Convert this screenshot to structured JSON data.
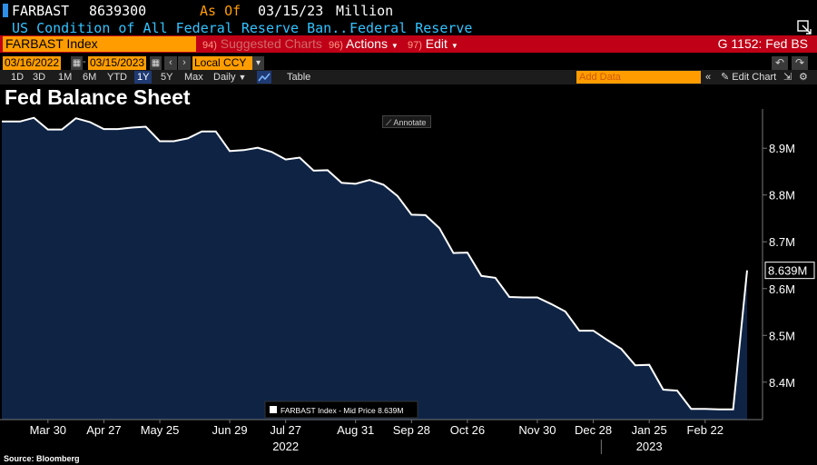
{
  "header": {
    "ticker": "FARBAST",
    "last_value": "8639300",
    "as_of_label": "As Of",
    "as_of_date": "03/15/23",
    "units": "Million",
    "description": "US Condition of All Federal Reserve Ban...",
    "source_name": "Federal Reserve"
  },
  "command_bar": {
    "security": "FARBAST Index",
    "suggested_num": "94)",
    "suggested_label": "Suggested Charts",
    "actions_num": "96)",
    "actions_label": "Actions",
    "edit_num": "97)",
    "edit_label": "Edit",
    "function_label": "G 1152: Fed BS"
  },
  "date_row": {
    "start_date": "03/16/2022",
    "end_date": "03/15/2023",
    "currency": "Local CCY"
  },
  "range_row": {
    "ranges": [
      "1D",
      "3D",
      "1M",
      "6M",
      "YTD",
      "1Y",
      "5Y",
      "Max"
    ],
    "selected_range": "1Y",
    "frequency": "Daily",
    "table_label": "Table",
    "add_data_placeholder": "Add Data",
    "edit_chart_label": "Edit Chart"
  },
  "annotate_label": "Annotate",
  "source_label": "Source: Bloomberg",
  "colors": {
    "area_fill": "#0f2445",
    "line": "#ffffff",
    "accent_orange": "#ff9d00",
    "bar_red": "#c00016",
    "text_cyan": "#33c3ff"
  },
  "chart_data": {
    "type": "area",
    "title": "Fed Balance Sheet",
    "series": [
      {
        "name": "FARBAST Index - Mid Price",
        "legend_value": "8.639M",
        "x": [
          "2022-03-16",
          "2022-03-23",
          "2022-03-30",
          "2022-04-06",
          "2022-04-13",
          "2022-04-20",
          "2022-04-27",
          "2022-05-04",
          "2022-05-11",
          "2022-05-18",
          "2022-05-25",
          "2022-06-01",
          "2022-06-08",
          "2022-06-15",
          "2022-06-22",
          "2022-06-29",
          "2022-07-06",
          "2022-07-13",
          "2022-07-20",
          "2022-07-27",
          "2022-08-03",
          "2022-08-10",
          "2022-08-17",
          "2022-08-24",
          "2022-08-31",
          "2022-09-07",
          "2022-09-14",
          "2022-09-21",
          "2022-09-28",
          "2022-10-05",
          "2022-10-12",
          "2022-10-19",
          "2022-10-26",
          "2022-11-02",
          "2022-11-09",
          "2022-11-16",
          "2022-11-23",
          "2022-11-30",
          "2022-12-07",
          "2022-12-14",
          "2022-12-21",
          "2022-12-28",
          "2023-01-04",
          "2023-01-11",
          "2023-01-18",
          "2023-01-25",
          "2023-02-01",
          "2023-02-08",
          "2023-02-15",
          "2023-02-22",
          "2023-03-01",
          "2023-03-08",
          "2023-03-15"
        ],
        "values": [
          8.957,
          8.965,
          8.94,
          8.94,
          8.964,
          8.956,
          8.941,
          8.941,
          8.944,
          8.946,
          8.915,
          8.915,
          8.921,
          8.936,
          8.936,
          8.894,
          8.896,
          8.901,
          8.892,
          8.876,
          8.88,
          8.852,
          8.853,
          8.826,
          8.824,
          8.832,
          8.822,
          8.798,
          8.758,
          8.757,
          8.729,
          8.676,
          8.677,
          8.627,
          8.623,
          8.582,
          8.581,
          8.581,
          8.567,
          8.551,
          8.51,
          8.51,
          8.49,
          8.471,
          8.436,
          8.437,
          8.384,
          8.382,
          8.343,
          8.343,
          8.342,
          8.342,
          8.639
        ]
      }
    ],
    "ylim": [
      8.32,
      8.98
    ],
    "y_ticks": [
      8.4,
      8.5,
      8.6,
      8.7,
      8.8,
      8.9
    ],
    "y_tick_labels": [
      "8.4M",
      "8.5M",
      "8.6M",
      "8.7M",
      "8.8M",
      "8.9M"
    ],
    "last_value_label": "8.639M",
    "x_tick_labels": [
      "Mar 30",
      "Apr 27",
      "May 25",
      "Jun 29",
      "Jul 27",
      "Aug 31",
      "Sep 28",
      "Oct 26",
      "Nov 30",
      "Dec 28",
      "Jan 25",
      "Feb 22"
    ],
    "x_tick_dates": [
      "2022-03-30",
      "2022-04-27",
      "2022-05-25",
      "2022-06-29",
      "2022-07-27",
      "2022-08-31",
      "2022-09-28",
      "2022-10-26",
      "2022-11-30",
      "2022-12-28",
      "2023-01-25",
      "2023-02-22"
    ],
    "year_labels": [
      "2022",
      "2023"
    ],
    "year_label_dates": [
      "2022-07-27",
      "2023-01-25"
    ],
    "year_divider_date": "2023-01-01",
    "legend_position": "bottom-center",
    "grid": false
  }
}
